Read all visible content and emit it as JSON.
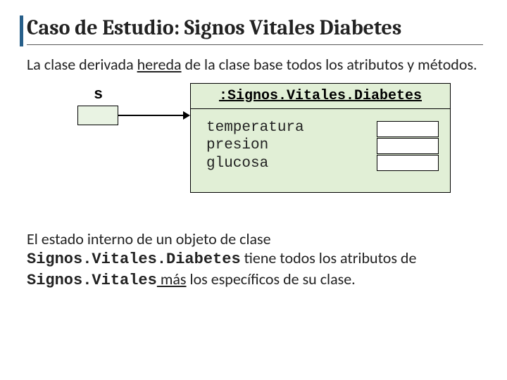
{
  "title": "Caso de Estudio: Signos Vitales Diabetes",
  "para1_a": "La clase derivada ",
  "para1_under": "hereda",
  "para1_b": " de la clase base todos los atributos y métodos.",
  "diagram": {
    "var_label": "s",
    "object_title": ":Signos.Vitales.Diabetes",
    "attributes": [
      "temperatura",
      "presion",
      "glucosa"
    ]
  },
  "para2_a": "El estado interno de un objeto de clase ",
  "para2_mono1": "Signos.Vitales.Diabetes",
  "para2_b": " tiene todos los atributos de ",
  "para2_mono2": "Signos.Vitales",
  "para2_under": " más",
  "para2_c": " los específicos de su clase.",
  "colors": {
    "accent": "#275f8a",
    "box_fill": "#e1efd6",
    "slot_fill": "#e9f3e3"
  }
}
